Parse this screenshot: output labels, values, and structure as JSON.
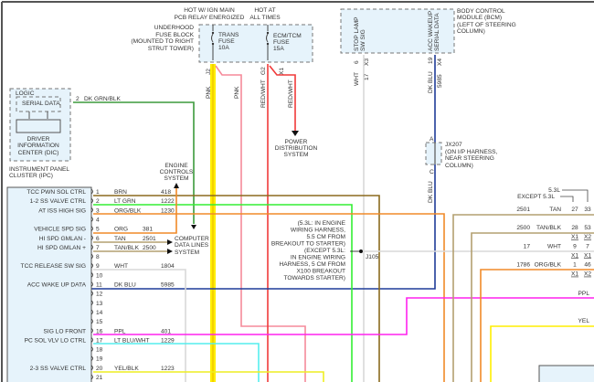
{
  "colors": {
    "brn": "#8b6a1e",
    "ltgrn": "#33ee33",
    "org": "#f08a28",
    "tan": "#b4a070",
    "wht": "#d8d8d8",
    "dkblu": "#1f3c98",
    "ppl": "#ff22ee",
    "ltbluwht": "#55eeee",
    "yelblk": "#eeee22",
    "pnk": "#f58a9a",
    "red": "#f03a3a",
    "dkgrnblk": "#3c9a3c",
    "yel": "#ffee00"
  },
  "fuse_block": {
    "hot_ign": [
      "HOT W/ IGN MAIN",
      "PCB RELAY ENERGIZED"
    ],
    "hot_always": [
      "HOT AT",
      "ALL TIMES"
    ],
    "label": [
      "UNDERHOOD",
      "FUSE BLOCK",
      "(MOUNTED TO RIGHT",
      "STRUT TOWER)"
    ],
    "trans_fuse": [
      "TRANS",
      "FUSE",
      "10A"
    ],
    "ecm_fuse": [
      "ECM/TCM",
      "FUSE",
      "15A"
    ],
    "pins": {
      "j2": "J2",
      "g2": "G2",
      "x1": "X1"
    },
    "wires": {
      "pnk1": "PNK",
      "pnk2": "PNK",
      "redwht1": "RED/WHT",
      "redwht2": "RED/WHT"
    }
  },
  "power_distribution": [
    "POWER",
    "DISTRIBUTION",
    "SYSTEM"
  ],
  "ipc": {
    "logic": "LOGIC",
    "serial_data": "SERIAL DATA",
    "dic": [
      "DRIVER",
      "INFORMATION",
      "CENTER (DIC)"
    ],
    "label": [
      "INSTRUMENT PANEL",
      "CLUSTER (IPC)"
    ],
    "pin": "2",
    "wire": "DK GRN/BLK"
  },
  "engine_controls": [
    "ENGINE",
    "CONTROLS",
    "SYSTEM"
  ],
  "computer_data_lines": [
    "COMPUTER",
    "DATA LINES",
    "SYSTEM"
  ],
  "bcm": {
    "label": [
      "BODY CONTROL",
      "MODULE (BCM)",
      "(LEFT OF STEERING",
      "COLUMN)"
    ],
    "stop_lamp": [
      "STOP LAMP",
      "SW SIG"
    ],
    "acc_wakeup": [
      "ACC WAKEUP",
      "SERIAL DATA"
    ],
    "pin_stop": "6",
    "conn_stop": "X3",
    "wire_stop": "WHT",
    "circ_stop": "17",
    "pin_acc": "19",
    "conn_acc": "X4",
    "wire_acc": "DK BLU",
    "circ_acc": "5985",
    "wire_acc2": "DK BLU"
  },
  "jx207": {
    "label": [
      "JX207",
      "(ON I/P HARNESS,",
      "NEAR STEERING",
      "COLUMN)"
    ],
    "a": "A",
    "c": "C"
  },
  "j105": {
    "label": "J105",
    "note": [
      "(5.3L: IN ENGINE",
      "WIRING HARNESS,",
      "5.5 CM FROM",
      "BREAKOUT TO STARTER)",
      "(EXCEPT 5.3L:",
      "IN ENGINE WIRING",
      "HARNESS, 5 CM FROM",
      "X100 BREAKOUT",
      "TOWARDS STARTER)"
    ]
  },
  "tcm_pins": [
    {
      "pin": "1",
      "label": "TCC PWN SOL CTRL",
      "color": "BRN",
      "circuit": "418"
    },
    {
      "pin": "2",
      "label": "1-2 SS VALVE CTRL",
      "color": "LT GRN",
      "circuit": "1222"
    },
    {
      "pin": "3",
      "label": "AT ISS HIGH SIG",
      "color": "ORG/BLK",
      "circuit": "1230"
    },
    {
      "pin": "4",
      "label": "",
      "color": "",
      "circuit": ""
    },
    {
      "pin": "5",
      "label": "VEHICLE SPD SIG",
      "color": "ORG",
      "circuit": "381"
    },
    {
      "pin": "6",
      "label": "HI SPD GMLAN -",
      "color": "TAN",
      "circuit": "2501"
    },
    {
      "pin": "7",
      "label": "HI SPD GMLAN +",
      "color": "TAN/BLK",
      "circuit": "2500"
    },
    {
      "pin": "8",
      "label": "",
      "color": "",
      "circuit": ""
    },
    {
      "pin": "9",
      "label": "TCC RELEASE SW SIG",
      "color": "WHT",
      "circuit": "1804"
    },
    {
      "pin": "10",
      "label": "",
      "color": "",
      "circuit": ""
    },
    {
      "pin": "11",
      "label": "ACC WAKE UP DATA",
      "color": "DK BLU",
      "circuit": "5985"
    },
    {
      "pin": "12",
      "label": "",
      "color": "",
      "circuit": ""
    },
    {
      "pin": "13",
      "label": "",
      "color": "",
      "circuit": ""
    },
    {
      "pin": "14",
      "label": "",
      "color": "",
      "circuit": ""
    },
    {
      "pin": "15",
      "label": "",
      "color": "",
      "circuit": ""
    },
    {
      "pin": "16",
      "label": "SIG LO FRONT",
      "color": "PPL",
      "circuit": "401"
    },
    {
      "pin": "17",
      "label": "PC SOL VLV LO CTRL",
      "color": "LT BLU/WHT",
      "circuit": "1229"
    },
    {
      "pin": "18",
      "label": "",
      "color": "",
      "circuit": ""
    },
    {
      "pin": "19",
      "label": "",
      "color": "",
      "circuit": ""
    },
    {
      "pin": "20",
      "label": "2-3 SS VALVE CTRL",
      "color": "YEL/BLK",
      "circuit": "1223"
    },
    {
      "pin": "21",
      "label": "",
      "color": "",
      "circuit": ""
    }
  ],
  "right_connector": {
    "label_53": "5.3L",
    "label_except": "EXCEPT 5.3L",
    "rows": [
      {
        "circuit": "2501",
        "color": "TAN",
        "pin_a": "27",
        "pin_b": "33",
        "conn_a": "",
        "conn_b": ""
      },
      {
        "circuit": "2500",
        "color": "TAN/BLK",
        "pin_a": "28",
        "pin_b": "53",
        "conn_a": "X1",
        "conn_b": "X2"
      },
      {
        "circuit": "17",
        "color": "WHT",
        "pin_a": "9",
        "pin_b": "7",
        "conn_a": "X1",
        "conn_b": "X1"
      },
      {
        "circuit": "1786",
        "color": "ORG/BLK",
        "pin_a": "1",
        "pin_b": "46",
        "conn_a": "X1",
        "conn_b": "X2"
      }
    ],
    "ppl": "PPL",
    "yel": "YEL"
  }
}
